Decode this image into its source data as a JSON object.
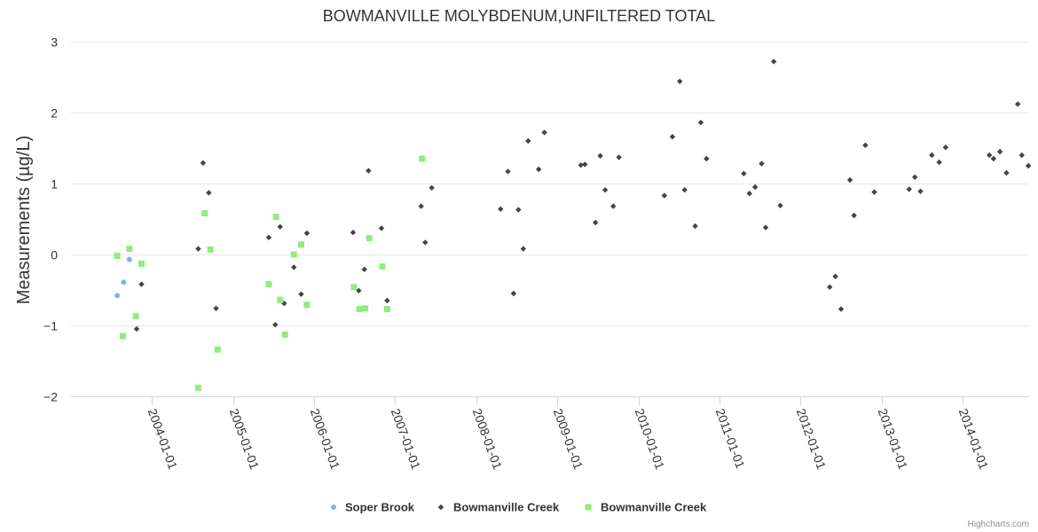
{
  "chart_data": {
    "type": "scatter",
    "title": "BOWMANVILLE MOLYBDENUM,UNFILTERED TOTAL",
    "xlabel": "",
    "ylabel": "Measurements (µg/L)",
    "ylim": [
      -2,
      3
    ],
    "yticks": [
      3,
      2,
      1,
      0,
      -1,
      -2
    ],
    "ytick_labels": [
      "3",
      "2",
      "1",
      "0",
      "−1",
      "−2"
    ],
    "xlim": [
      2003.0,
      2014.82
    ],
    "xticks": [
      {
        "value": 2004.0,
        "label": "2004-01-01"
      },
      {
        "value": 2005.0,
        "label": "2005-01-01"
      },
      {
        "value": 2006.0,
        "label": "2006-01-01"
      },
      {
        "value": 2007.0,
        "label": "2007-01-01"
      },
      {
        "value": 2008.0,
        "label": "2008-01-01"
      },
      {
        "value": 2009.0,
        "label": "2009-01-01"
      },
      {
        "value": 2010.0,
        "label": "2010-01-01"
      },
      {
        "value": 2011.0,
        "label": "2011-01-01"
      },
      {
        "value": 2012.0,
        "label": "2012-01-01"
      },
      {
        "value": 2013.0,
        "label": "2013-01-01"
      },
      {
        "value": 2014.0,
        "label": "2014-01-01"
      }
    ],
    "grid": true,
    "legend_position": "bottom-center",
    "credits": "Highcharts.com",
    "series": [
      {
        "name": "Soper Brook",
        "marker": "circle",
        "color": "#7cb5ec",
        "points": [
          [
            2003.57,
            -0.58
          ],
          [
            2003.65,
            -0.39
          ],
          [
            2003.72,
            -0.07
          ]
        ]
      },
      {
        "name": "Bowmanville Creek",
        "marker": "diamond",
        "color": "#434348",
        "points": [
          [
            2003.81,
            -1.05
          ],
          [
            2003.87,
            -0.42
          ],
          [
            2004.57,
            0.08
          ],
          [
            2004.63,
            1.29
          ],
          [
            2004.7,
            0.87
          ],
          [
            2004.79,
            -0.76
          ],
          [
            2005.44,
            0.24
          ],
          [
            2005.52,
            -0.99
          ],
          [
            2005.58,
            0.39
          ],
          [
            2005.63,
            -0.69
          ],
          [
            2005.75,
            -0.18
          ],
          [
            2005.84,
            -0.56
          ],
          [
            2005.91,
            0.3
          ],
          [
            2006.48,
            0.31
          ],
          [
            2006.55,
            -0.51
          ],
          [
            2006.62,
            -0.21
          ],
          [
            2006.67,
            1.18
          ],
          [
            2006.83,
            0.37
          ],
          [
            2006.9,
            -0.65
          ],
          [
            2007.32,
            0.68
          ],
          [
            2007.37,
            0.17
          ],
          [
            2007.45,
            0.94
          ],
          [
            2008.3,
            0.64
          ],
          [
            2008.39,
            1.17
          ],
          [
            2008.46,
            -0.55
          ],
          [
            2008.52,
            0.63
          ],
          [
            2008.58,
            0.08
          ],
          [
            2008.64,
            1.6
          ],
          [
            2008.77,
            1.2
          ],
          [
            2008.84,
            1.72
          ],
          [
            2009.29,
            1.26
          ],
          [
            2009.34,
            1.27
          ],
          [
            2009.47,
            0.45
          ],
          [
            2009.53,
            1.39
          ],
          [
            2009.59,
            0.91
          ],
          [
            2009.69,
            0.68
          ],
          [
            2009.76,
            1.37
          ],
          [
            2010.32,
            0.83
          ],
          [
            2010.42,
            1.66
          ],
          [
            2010.51,
            2.44
          ],
          [
            2010.57,
            0.91
          ],
          [
            2010.7,
            0.4
          ],
          [
            2010.77,
            1.86
          ],
          [
            2010.84,
            1.35
          ],
          [
            2011.3,
            1.14
          ],
          [
            2011.37,
            0.86
          ],
          [
            2011.44,
            0.95
          ],
          [
            2011.52,
            1.28
          ],
          [
            2011.57,
            0.38
          ],
          [
            2011.67,
            2.72
          ],
          [
            2011.75,
            0.69
          ],
          [
            2012.36,
            -0.46
          ],
          [
            2012.43,
            -0.31
          ],
          [
            2012.5,
            -0.77
          ],
          [
            2012.61,
            1.05
          ],
          [
            2012.66,
            0.55
          ],
          [
            2012.8,
            1.54
          ],
          [
            2012.91,
            0.88
          ],
          [
            2013.34,
            0.92
          ],
          [
            2013.41,
            1.09
          ],
          [
            2013.48,
            0.89
          ],
          [
            2013.62,
            1.4
          ],
          [
            2013.71,
            1.3
          ],
          [
            2013.79,
            1.51
          ],
          [
            2014.33,
            1.4
          ],
          [
            2014.38,
            1.35
          ],
          [
            2014.46,
            1.45
          ],
          [
            2014.54,
            1.15
          ],
          [
            2014.68,
            2.12
          ],
          [
            2014.73,
            1.4
          ],
          [
            2014.81,
            1.25
          ]
        ]
      },
      {
        "name": "Bowmanville Creek",
        "marker": "square",
        "color": "#90ed7d",
        "points": [
          [
            2003.57,
            -0.02
          ],
          [
            2003.64,
            -1.15
          ],
          [
            2003.72,
            0.08
          ],
          [
            2003.8,
            -0.87
          ],
          [
            2003.87,
            -0.13
          ],
          [
            2004.57,
            -1.88
          ],
          [
            2004.65,
            0.58
          ],
          [
            2004.72,
            0.07
          ],
          [
            2004.81,
            -1.34
          ],
          [
            2005.44,
            -0.42
          ],
          [
            2005.53,
            0.53
          ],
          [
            2005.58,
            -0.64
          ],
          [
            2005.64,
            -1.13
          ],
          [
            2005.75,
            0.0
          ],
          [
            2005.84,
            0.14
          ],
          [
            2005.91,
            -0.71
          ],
          [
            2006.49,
            -0.46
          ],
          [
            2006.56,
            -0.77
          ],
          [
            2006.63,
            -0.76
          ],
          [
            2006.68,
            0.23
          ],
          [
            2006.84,
            -0.17
          ],
          [
            2006.9,
            -0.77
          ],
          [
            2007.33,
            1.35
          ]
        ]
      }
    ]
  }
}
